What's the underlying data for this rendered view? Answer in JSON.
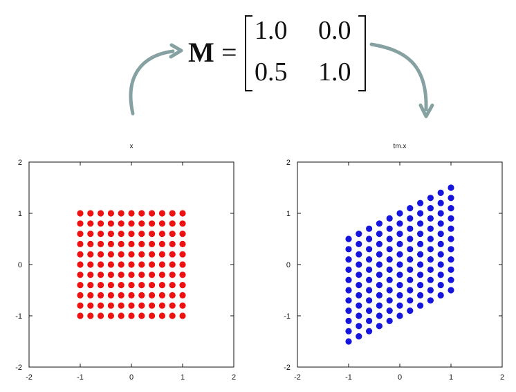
{
  "equation": {
    "lhs": "M",
    "equals": "=",
    "matrix": [
      [
        "1.0",
        "0.0"
      ],
      [
        "0.5",
        "1.0"
      ]
    ]
  },
  "colors": {
    "original_points": "#ee1111",
    "transformed_points": "#1515dd",
    "arrow": "#86a1a1"
  },
  "chart_data": [
    {
      "type": "scatter",
      "title": "x",
      "xlabel": "",
      "ylabel": "",
      "xlim": [
        -2,
        2
      ],
      "ylim": [
        -2,
        2
      ],
      "xticks": [
        "-2",
        "-1",
        "0",
        "1",
        "2"
      ],
      "yticks": [
        "-2",
        "-1",
        "0",
        "1",
        "2"
      ],
      "grid": false,
      "color": "#ee1111",
      "grid_points": {
        "x_values": [
          -1.0,
          -0.8,
          -0.6,
          -0.4,
          -0.2,
          0.0,
          0.2,
          0.4,
          0.6,
          0.8,
          1.0
        ],
        "y_values": [
          -1.0,
          -0.8,
          -0.6,
          -0.4,
          -0.2,
          0.0,
          0.2,
          0.4,
          0.6,
          0.8,
          1.0
        ]
      }
    },
    {
      "type": "scatter",
      "title": "tm.x",
      "xlabel": "",
      "ylabel": "",
      "xlim": [
        -2,
        2
      ],
      "ylim": [
        -2,
        2
      ],
      "xticks": [
        "-2",
        "-1",
        "0",
        "1",
        "2"
      ],
      "yticks": [
        "-2",
        "-1",
        "0",
        "1",
        "2"
      ],
      "grid": false,
      "color": "#1515dd",
      "grid_points": {
        "x_values": [
          -1.0,
          -0.8,
          -0.6,
          -0.4,
          -0.2,
          0.0,
          0.2,
          0.4,
          0.6,
          0.8,
          1.0
        ],
        "y_values": [
          -1.0,
          -0.8,
          -0.6,
          -0.4,
          -0.2,
          0.0,
          0.2,
          0.4,
          0.6,
          0.8,
          1.0
        ]
      },
      "transform": [
        [
          1.0,
          0.0
        ],
        [
          0.5,
          1.0
        ]
      ]
    }
  ]
}
